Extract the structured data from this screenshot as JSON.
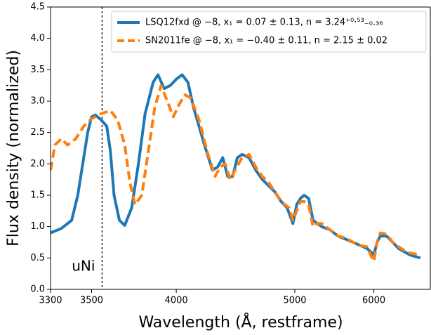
{
  "chart_data": {
    "type": "line",
    "xlabel": "Wavelength (Å, restframe)",
    "ylabel": "Flux density (normalized)",
    "xscale": "reciprocal",
    "xlim": [
      3300,
      7000
    ],
    "xticks": [
      3300,
      3500,
      4000,
      5000,
      6000
    ],
    "ylim": [
      0,
      4.5
    ],
    "yticks": [
      {
        "value": 0,
        "label": "0.0"
      },
      0.5,
      {
        "value": 1,
        "label": "1.0"
      },
      1.5,
      {
        "value": 2,
        "label": "2.0"
      },
      2.5,
      {
        "value": 3,
        "label": "3.0"
      },
      3.5,
      {
        "value": 4,
        "label": "4.0"
      },
      4.5
    ],
    "vline": 3555,
    "annotation": "uNi",
    "legend": "upper right",
    "series": [
      {
        "name": "LSQ12fxd @ −8, x₁ = 0.07 ± 0.13, n = 3.24⁺⁰·⁵³₋₀.₃₆",
        "color": "#1f77b4",
        "dashed": false,
        "x": [
          3300,
          3350,
          3400,
          3430,
          3460,
          3480,
          3500,
          3520,
          3550,
          3580,
          3600,
          3620,
          3650,
          3680,
          3720,
          3760,
          3800,
          3850,
          3880,
          3920,
          3960,
          4000,
          4040,
          4080,
          4120,
          4200,
          4260,
          4300,
          4340,
          4380,
          4420,
          4460,
          4500,
          4560,
          4620,
          4680,
          4740,
          4800,
          4860,
          4920,
          4980,
          5020,
          5060,
          5100,
          5150,
          5200,
          5300,
          5400,
          5500,
          5600,
          5700,
          5800,
          5900,
          5950,
          6000,
          6050,
          6100,
          6200,
          6300,
          6400,
          6500,
          6600,
          6800
        ],
        "values": [
          0.9,
          0.97,
          1.1,
          1.5,
          2.1,
          2.5,
          2.75,
          2.78,
          2.7,
          2.6,
          2.2,
          1.5,
          1.1,
          1.02,
          1.3,
          2.0,
          2.8,
          3.3,
          3.42,
          3.2,
          3.25,
          3.35,
          3.42,
          3.3,
          2.9,
          2.3,
          1.9,
          1.95,
          2.1,
          1.8,
          1.8,
          2.1,
          2.15,
          2.1,
          1.9,
          1.75,
          1.65,
          1.55,
          1.4,
          1.3,
          1.05,
          1.35,
          1.45,
          1.5,
          1.45,
          1.1,
          1.0,
          0.95,
          0.85,
          0.8,
          0.75,
          0.7,
          0.65,
          0.6,
          0.55,
          0.75,
          0.85,
          0.85,
          0.75,
          0.65,
          0.6,
          0.55,
          0.5
        ]
      },
      {
        "name": "SN2011fe @ −8, x₁ = −0.40 ± 0.11, n = 2.15 ± 0.02",
        "color": "#ff7f0e",
        "dashed": true,
        "x": [
          3300,
          3320,
          3350,
          3380,
          3420,
          3460,
          3500,
          3550,
          3600,
          3640,
          3680,
          3710,
          3740,
          3780,
          3820,
          3860,
          3900,
          3940,
          3980,
          4020,
          4060,
          4100,
          4160,
          4220,
          4280,
          4320,
          4360,
          4400,
          4440,
          4500,
          4560,
          4620,
          4680,
          4740,
          4800,
          4860,
          4940,
          4980,
          5020,
          5060,
          5100,
          5150,
          5200,
          5250,
          5300,
          5400,
          5500,
          5600,
          5700,
          5800,
          5900,
          5950,
          6000,
          6050,
          6100,
          6200,
          6300,
          6400,
          6500,
          6600,
          6800
        ],
        "values": [
          1.9,
          2.3,
          2.4,
          2.3,
          2.4,
          2.6,
          2.72,
          2.8,
          2.85,
          2.7,
          2.3,
          1.7,
          1.35,
          1.5,
          2.2,
          2.9,
          3.25,
          3.0,
          2.75,
          2.95,
          3.1,
          3.05,
          2.7,
          2.2,
          1.8,
          1.95,
          2.0,
          1.75,
          1.9,
          2.1,
          2.15,
          1.95,
          1.8,
          1.7,
          1.55,
          1.4,
          1.3,
          1.1,
          1.25,
          1.4,
          1.4,
          1.35,
          1.0,
          1.05,
          1.05,
          0.95,
          0.85,
          0.82,
          0.75,
          0.7,
          0.68,
          0.55,
          0.45,
          0.75,
          0.9,
          0.88,
          0.75,
          0.68,
          0.62,
          0.58,
          0.55
        ]
      }
    ]
  }
}
